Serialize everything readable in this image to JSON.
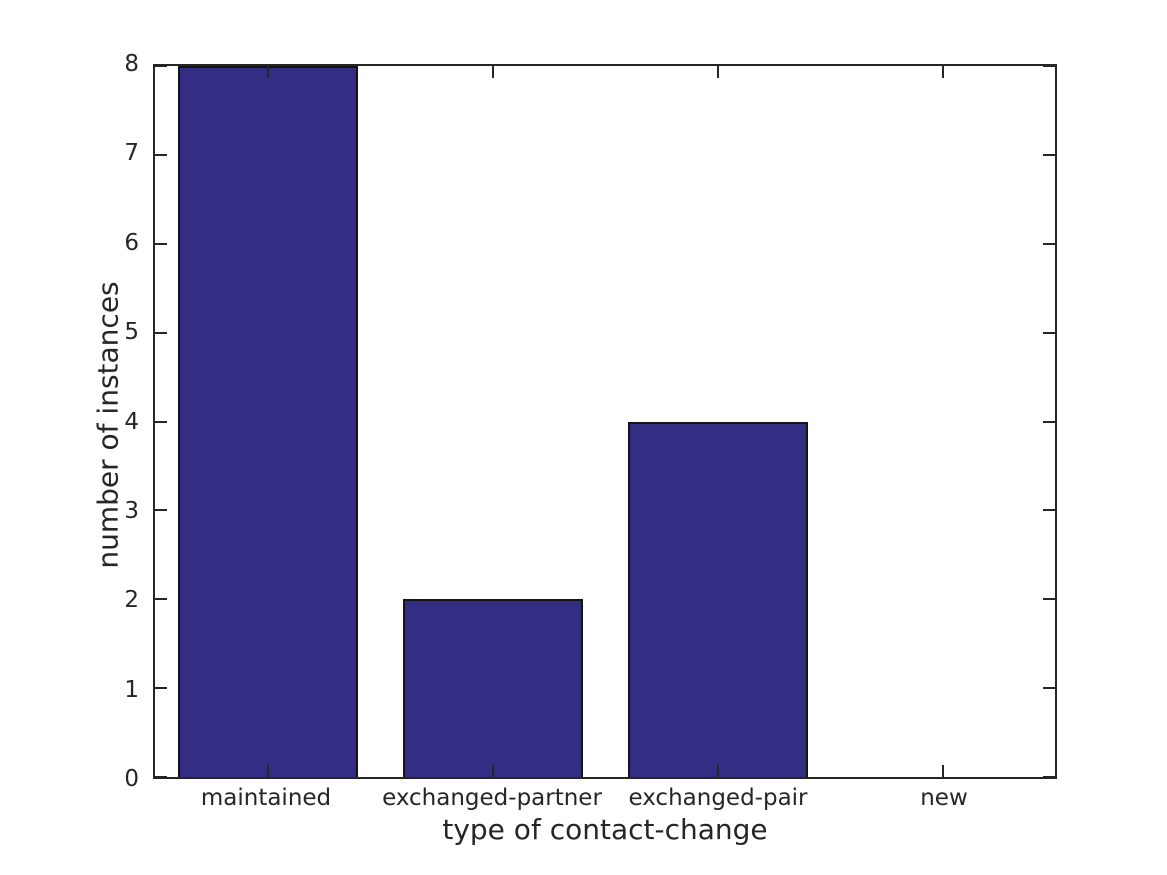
{
  "chart_data": {
    "type": "bar",
    "categories": [
      "maintained",
      "exchanged-partner",
      "exchanged-pair",
      "new"
    ],
    "values": [
      8,
      2,
      4,
      0
    ],
    "title": "",
    "xlabel": "type of contact-change",
    "ylabel": "number of instances",
    "ylim": [
      0,
      8
    ],
    "yticks": [
      0,
      1,
      2,
      3,
      4,
      5,
      6,
      7,
      8
    ],
    "bar_width_fraction": 0.8,
    "grid": false,
    "legend": null,
    "colors": {
      "bar_fill": "#342d84",
      "bar_edge": "#141414",
      "axis": "#262626",
      "text": "#262626",
      "background": "#ffffff"
    }
  }
}
